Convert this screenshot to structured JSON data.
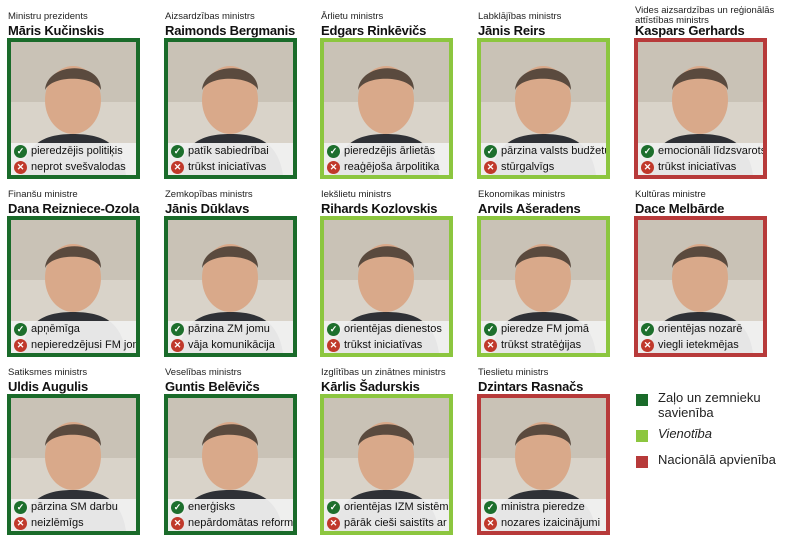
{
  "colors": {
    "zzs": "#1a6b2a",
    "vienotiba": "#8cc63f",
    "na": "#b73a3a"
  },
  "ministers": [
    {
      "role": "Ministru prezidents",
      "name": "Māris Kučinskis",
      "party": "green",
      "plus": "pieredzējis politiķis",
      "minus": "neprot svešvalodas"
    },
    {
      "role": "Aizsardzības ministrs",
      "name": "Raimonds Bergmanis",
      "party": "green",
      "plus": "patīk sabiedrībai",
      "minus": "trūkst iniciatīvas"
    },
    {
      "role": "Ārlietu ministrs",
      "name": "Edgars Rinkēvičs",
      "party": "light",
      "plus": "pieredzējis ārlietās",
      "minus": "reaģējoša ārpolitika"
    },
    {
      "role": "Labklājības ministrs",
      "name": "Jānis Reirs",
      "party": "light",
      "plus": "pārzina valsts budžetu",
      "minus": "stūrgalvīgs"
    },
    {
      "role": "Vides aizsardzības un reģionālās attīstības ministrs",
      "name": "Kaspars Gerhards",
      "party": "red",
      "plus": "emocionāli līdzsvarots",
      "minus": "trūkst iniciatīvas"
    },
    {
      "role": "Finanšu ministre",
      "name": "Dana Reizniece-Ozola",
      "party": "green",
      "plus": "apņēmīga",
      "minus": "nepieredzējusi FM jomā"
    },
    {
      "role": "Zemkopības ministrs",
      "name": "Jānis Dūklavs",
      "party": "green",
      "plus": "pārzina ZM jomu",
      "minus": "vāja komunikācija"
    },
    {
      "role": "Iekšlietu ministrs",
      "name": "Rihards Kozlovskis",
      "party": "light",
      "plus": "orientējas dienestos",
      "minus": "trūkst iniciatīvas"
    },
    {
      "role": "Ekonomikas ministrs",
      "name": "Arvils Ašeradens",
      "party": "light",
      "plus": "pieredze FM jomā",
      "minus": "trūkst stratēģijas"
    },
    {
      "role": "Kultūras ministre",
      "name": "Dace Melbārde",
      "party": "red",
      "plus": "orientējas nozarē",
      "minus": "viegli ietekmējas"
    },
    {
      "role": "Satiksmes ministrs",
      "name": "Uldis Augulis",
      "party": "green",
      "plus": "pārzina SM darbu",
      "minus": "neizlēmīgs"
    },
    {
      "role": "Veselības ministrs",
      "name": "Guntis Belēvičs",
      "party": "green",
      "plus": "enerģisks",
      "minus": "nepārdomātas reformas"
    },
    {
      "role": "Izglītības un zinātnes ministrs",
      "name": "Kārlis Šadurskis",
      "party": "light",
      "plus": "orientējas IZM sistēmā",
      "minus": "pārāk cieši saistīts ar to"
    },
    {
      "role": "Tieslietu ministrs",
      "name": "Dzintars Rasnačs",
      "party": "red",
      "plus": "ministra pieredze",
      "minus": "nozares izaicinājumi"
    }
  ],
  "legend": [
    {
      "label": "Zaļo un zemnieku savienība",
      "color": "#1a6b2a",
      "italic": false
    },
    {
      "label": "Vienotība",
      "color": "#8cc63f",
      "italic": true
    },
    {
      "label": "Nacionālā apvienība",
      "color": "#b73a3a",
      "italic": false
    }
  ],
  "icons": {
    "plus": "check-icon",
    "minus": "cross-icon"
  }
}
